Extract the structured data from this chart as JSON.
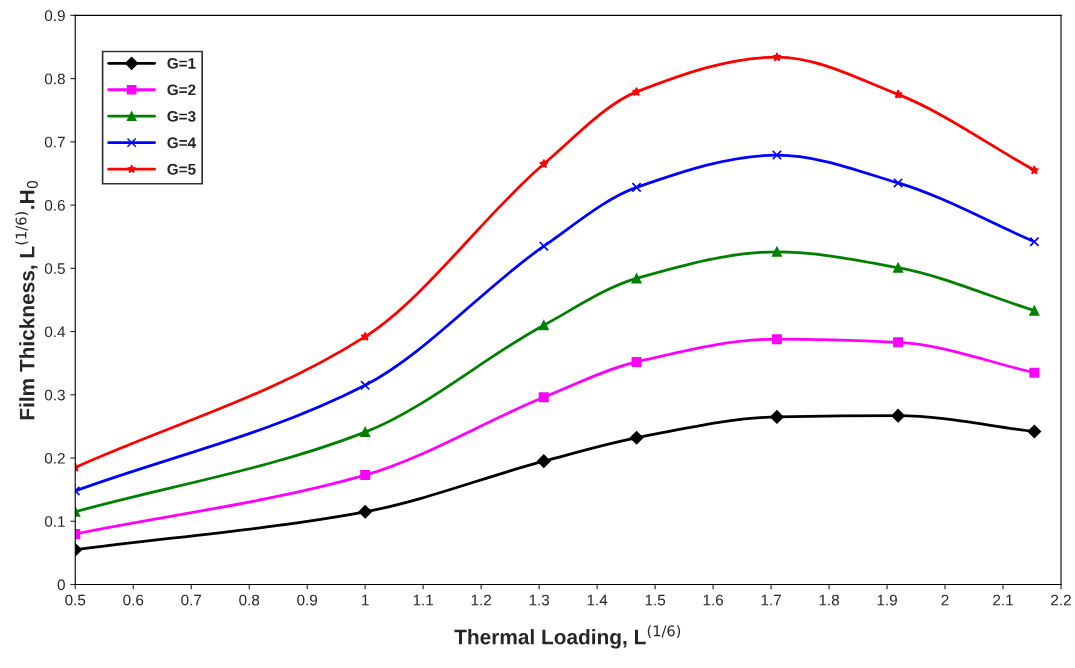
{
  "chart_data": {
    "type": "line",
    "xlabel": "Thermal Loading, L$^{(1/6)}$",
    "ylabel": "Film Thickness, L$^{(1/6)}$.H$_{0}$",
    "x": [
      0.5,
      1.0,
      1.308,
      1.468,
      1.71,
      1.919,
      2.154
    ],
    "series": [
      {
        "name": "G=1",
        "color": "#000000",
        "marker": "diamond",
        "values": [
          0.055,
          0.115,
          0.195,
          0.232,
          0.265,
          0.267,
          0.242
        ]
      },
      {
        "name": "G=2",
        "color": "#ff00ff",
        "marker": "square",
        "values": [
          0.08,
          0.173,
          0.296,
          0.352,
          0.388,
          0.383,
          0.335
        ]
      },
      {
        "name": "G=3",
        "color": "#008000",
        "marker": "triangle",
        "values": [
          0.115,
          0.241,
          0.41,
          0.484,
          0.526,
          0.501,
          0.433
        ]
      },
      {
        "name": "G=4",
        "color": "#0000ff",
        "marker": "cross",
        "values": [
          0.148,
          0.315,
          0.535,
          0.628,
          0.679,
          0.635,
          0.542
        ]
      },
      {
        "name": "G=5",
        "color": "#ff0000",
        "marker": "star",
        "values": [
          0.185,
          0.392,
          0.665,
          0.779,
          0.834,
          0.775,
          0.655
        ]
      }
    ],
    "xlim": [
      0.5,
      2.2
    ],
    "xticks": [
      0.5,
      0.6,
      0.7,
      0.8,
      0.9,
      {
        "value": 1.0,
        "label": "1"
      },
      1.1,
      1.2,
      1.3,
      1.4,
      1.5,
      1.6,
      1.7,
      1.8,
      1.9,
      {
        "value": 2.0,
        "label": "2"
      },
      2.1,
      2.2
    ],
    "ylim": [
      0,
      0.9
    ],
    "yticks": [
      0,
      0.1,
      0.2,
      0.3,
      0.4,
      0.5,
      0.6,
      0.7,
      0.8,
      0.9
    ],
    "grid": false,
    "legend": "top left",
    "line_style": "solid"
  }
}
